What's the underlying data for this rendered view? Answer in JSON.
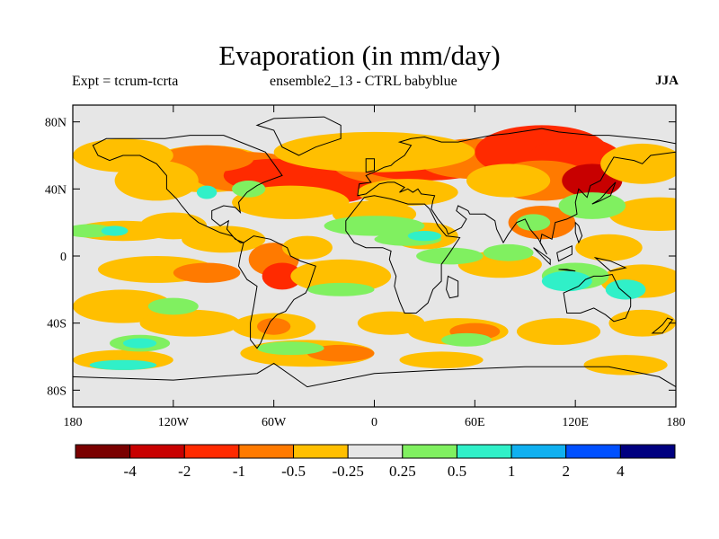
{
  "title": "Evaporation (in mm/day)",
  "subtitle_left": "Expt = tcrum-tcrta",
  "subtitle_center": "ensemble2_13 - CTRL babyblue",
  "subtitle_right": "JJA",
  "chart_data": {
    "type": "heatmap",
    "x_ticks": [
      "180",
      "120W",
      "60W",
      "0",
      "60E",
      "120E",
      "180"
    ],
    "y_ticks": [
      "80N",
      "40N",
      "0",
      "40S",
      "80S"
    ],
    "x_range": [
      -180,
      180
    ],
    "y_range": [
      -90,
      90
    ],
    "colorbar": {
      "colors": [
        "#7a0000",
        "#c80000",
        "#ff2a00",
        "#ff7a00",
        "#ffbf00",
        "#e6e6e6",
        "#80f060",
        "#30f0c8",
        "#10b0f0",
        "#0050ff",
        "#000080"
      ],
      "labels": [
        "-4",
        "-2",
        "-1",
        "-0.5",
        "-0.25",
        "0.25",
        "0.5",
        "1",
        "2",
        "4"
      ]
    },
    "background_color": "#e6e6e6"
  }
}
